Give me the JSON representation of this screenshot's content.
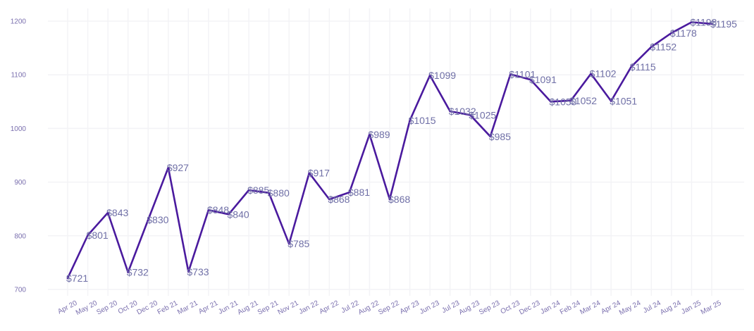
{
  "chart_data": {
    "type": "line",
    "title": "",
    "xlabel": "",
    "ylabel": "",
    "ylim": [
      700,
      1220
    ],
    "yticks": [
      700,
      800,
      900,
      1000,
      1100,
      1200
    ],
    "grid": true,
    "legend": "none",
    "categories": [
      "Apr 20",
      "May 20",
      "Sep 20",
      "Oct 20",
      "Dec 20",
      "Feb 21",
      "Mar 21",
      "Apr 21",
      "Jun 21",
      "Aug 21",
      "Sep 21",
      "Nov 21",
      "Jan 22",
      "Apr 22",
      "Jul 22",
      "Aug 22",
      "Sep 22",
      "Apr 23",
      "Jun 23",
      "Jul 23",
      "Aug 23",
      "Sep 23",
      "Oct 23",
      "Dec 23",
      "Jan 24",
      "Feb 24",
      "Mar 24",
      "Apr 24",
      "May 24",
      "Jul 24",
      "Aug 24",
      "Jan 25",
      "Mar 25"
    ],
    "values": [
      721,
      801,
      843,
      732,
      830,
      927,
      733,
      848,
      840,
      885,
      880,
      785,
      917,
      868,
      881,
      989,
      868,
      1015,
      1099,
      1032,
      1025,
      985,
      1101,
      1091,
      1050,
      1052,
      1102,
      1051,
      1115,
      1152,
      1178,
      1198,
      1195
    ],
    "data_labels": [
      "$721",
      "$801",
      "$843",
      "$732",
      "$830",
      "$927",
      "$733",
      "$848",
      "$840",
      "$885",
      "$880",
      "$785",
      "$917",
      "$868",
      "$881",
      "$989",
      "$868",
      "$1015",
      "$1099",
      "$1032",
      "$1025",
      "$985",
      "$1101",
      "$1091",
      "$1050",
      "$1052",
      "$1102",
      "$1051",
      "$1115",
      "$1152",
      "$1178",
      "$1198",
      "$1195"
    ],
    "colors": {
      "line": "#4a1a9e",
      "label": "#6f6fa6",
      "grid": "#f3f3f6",
      "tick": "#7a6fae"
    }
  }
}
